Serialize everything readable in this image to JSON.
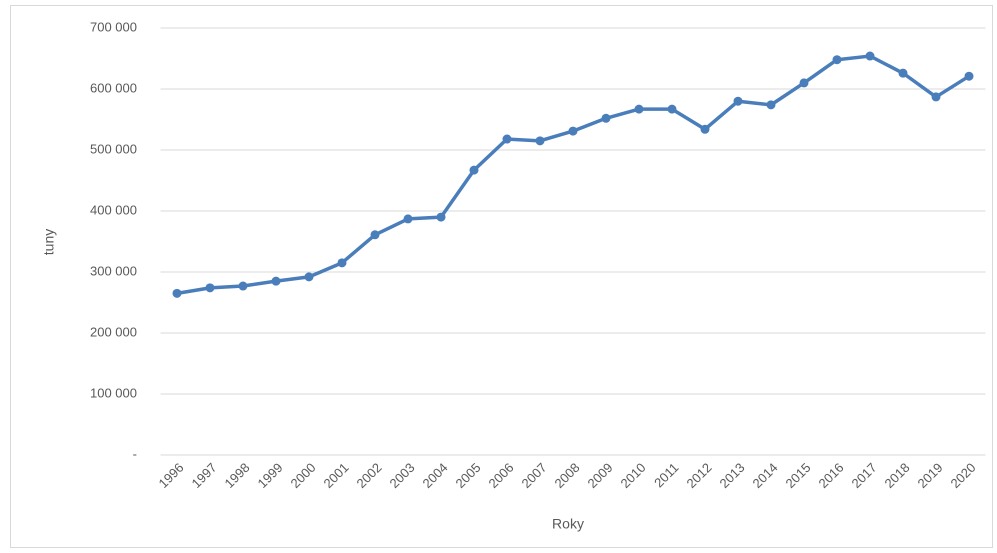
{
  "chart_data": {
    "type": "line",
    "x_label": "Roky",
    "y_label": "tuny",
    "categories": [
      "1996",
      "1997",
      "1998",
      "1999",
      "2000",
      "2001",
      "2002",
      "2003",
      "2004",
      "2005",
      "2006",
      "2007",
      "2008",
      "2009",
      "2010",
      "2011",
      "2012",
      "2013",
      "2014",
      "2015",
      "2016",
      "2017",
      "2018",
      "2019",
      "2020"
    ],
    "values": [
      265000,
      274000,
      277000,
      285000,
      292000,
      315000,
      361000,
      387000,
      390000,
      467000,
      518000,
      515000,
      531000,
      552000,
      567000,
      567000,
      534000,
      580000,
      574000,
      610000,
      648000,
      654000,
      626000,
      587000,
      621000
    ],
    "color": "#4a7ebb",
    "ylim": [
      0,
      700000
    ],
    "yticks": [
      {
        "value": 0,
        "label": "-"
      },
      {
        "value": 100000,
        "label": "100 000"
      },
      {
        "value": 200000,
        "label": "200 000"
      },
      {
        "value": 300000,
        "label": "300 000"
      },
      {
        "value": 400000,
        "label": "400 000"
      },
      {
        "value": 500000,
        "label": "500 000"
      },
      {
        "value": 600000,
        "label": "600 000"
      },
      {
        "value": 700000,
        "label": "700 000"
      }
    ],
    "grid": true
  }
}
